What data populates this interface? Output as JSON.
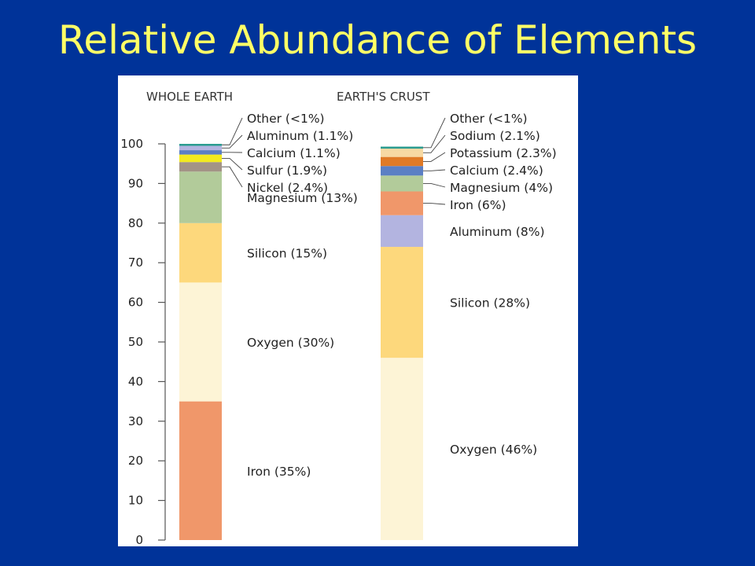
{
  "slide": {
    "title": "Relative Abundance of Elements"
  },
  "chart_data": [
    {
      "type": "bar",
      "stacked": true,
      "title": "WHOLE EARTH",
      "ylim": [
        0,
        100
      ],
      "yticks": [
        0,
        10,
        20,
        30,
        40,
        50,
        60,
        70,
        80,
        90,
        100
      ],
      "segments": [
        {
          "name": "Iron",
          "label": "Iron (35%)",
          "value": 35,
          "color": "#f0976a"
        },
        {
          "name": "Oxygen",
          "label": "Oxygen (30%)",
          "value": 30,
          "color": "#fdf4d6"
        },
        {
          "name": "Silicon",
          "label": "Silicon (15%)",
          "value": 15,
          "color": "#fdd87c"
        },
        {
          "name": "Magnesium",
          "label": "Magnesium (13%)",
          "value": 13,
          "color": "#b2cb9a"
        },
        {
          "name": "Nickel",
          "label": "Nickel (2.4%)",
          "value": 2.4,
          "color": "#a39386"
        },
        {
          "name": "Sulfur",
          "label": "Sulfur (1.9%)",
          "value": 1.9,
          "color": "#f2ea1f"
        },
        {
          "name": "Calcium",
          "label": "Calcium (1.1%)",
          "value": 1.1,
          "color": "#5b7fc4"
        },
        {
          "name": "Aluminum",
          "label": "Aluminum (1.1%)",
          "value": 1.1,
          "color": "#b3b4e0"
        },
        {
          "name": "Other",
          "label": "Other (<1%)",
          "value": 0.5,
          "color": "#2b9c8f"
        }
      ]
    },
    {
      "type": "bar",
      "stacked": true,
      "title": "EARTH'S CRUST",
      "ylim": [
        0,
        100
      ],
      "segments": [
        {
          "name": "Oxygen",
          "label": "Oxygen (46%)",
          "value": 46,
          "color": "#fdf4d6"
        },
        {
          "name": "Silicon",
          "label": "Silicon (28%)",
          "value": 28,
          "color": "#fdd87c"
        },
        {
          "name": "Aluminum",
          "label": "Aluminum (8%)",
          "value": 8,
          "color": "#b3b4e0"
        },
        {
          "name": "Iron",
          "label": "Iron (6%)",
          "value": 6,
          "color": "#f0976a"
        },
        {
          "name": "Magnesium",
          "label": "Magnesium (4%)",
          "value": 4,
          "color": "#b2cb9a"
        },
        {
          "name": "Calcium",
          "label": "Calcium (2.4%)",
          "value": 2.4,
          "color": "#5b7fc4"
        },
        {
          "name": "Potassium",
          "label": "Potassium (2.3%)",
          "value": 2.3,
          "color": "#e07a26"
        },
        {
          "name": "Sodium",
          "label": "Sodium (2.1%)",
          "value": 2.1,
          "color": "#f7d9a3"
        },
        {
          "name": "Other",
          "label": "Other (<1%)",
          "value": 0.5,
          "color": "#2b9c8f"
        }
      ]
    }
  ]
}
